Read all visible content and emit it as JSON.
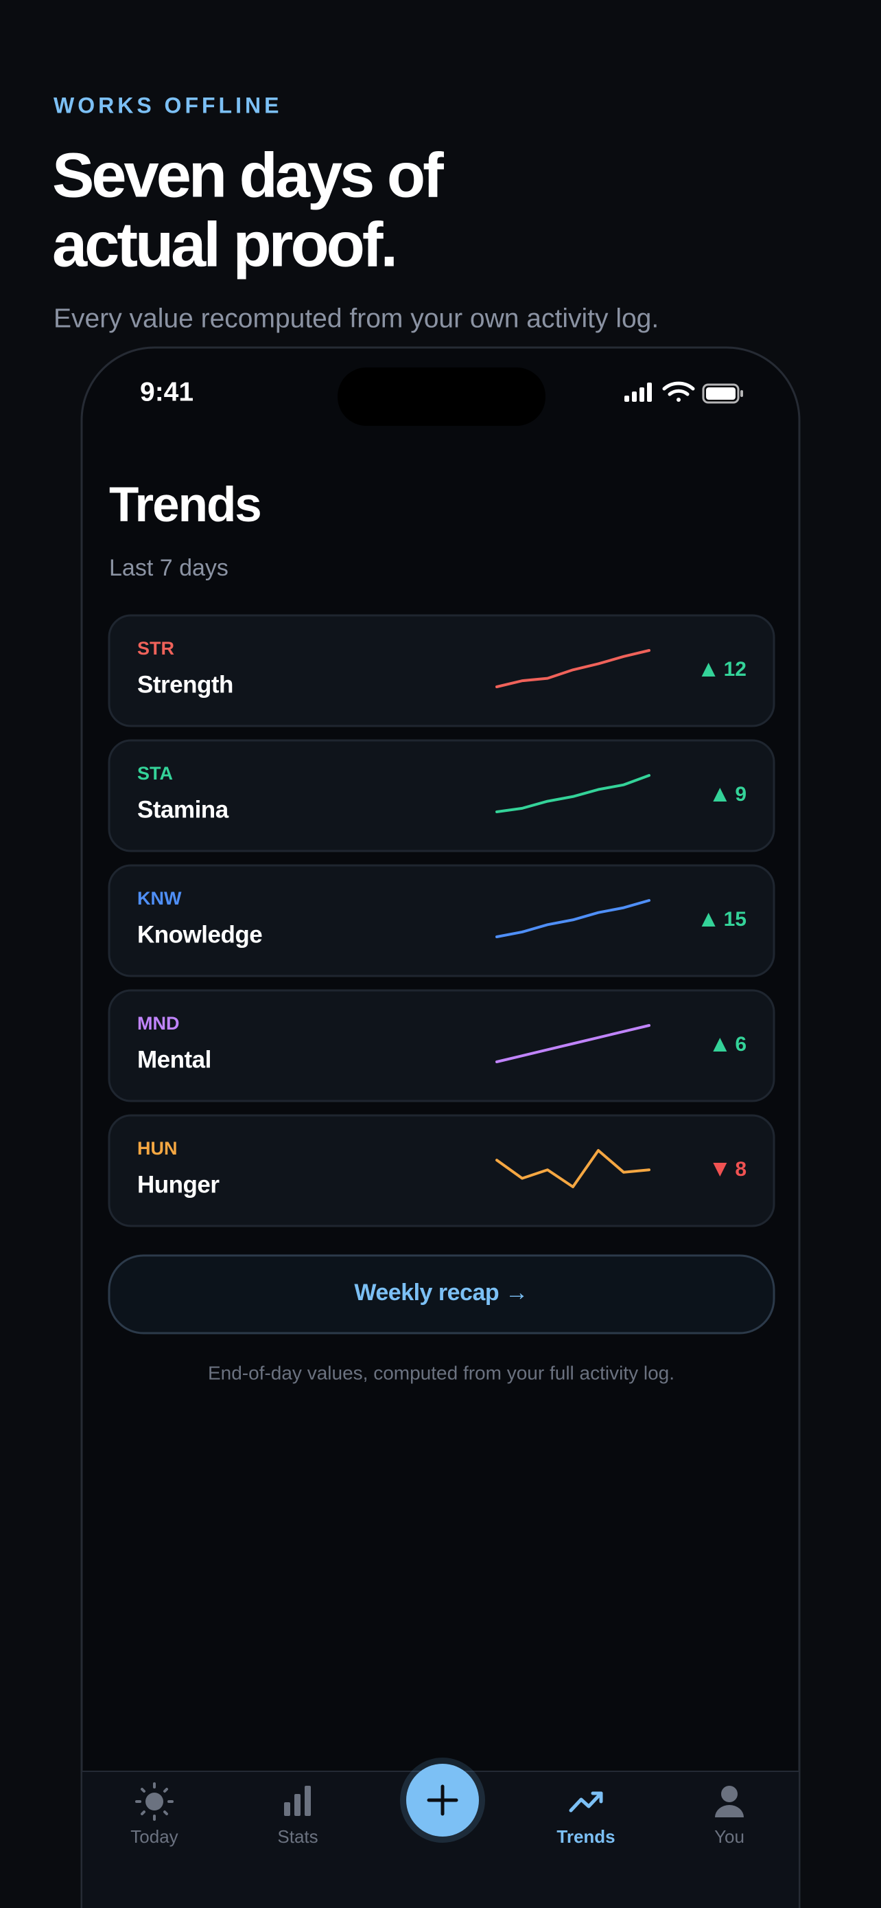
{
  "header": {
    "eyebrow": "WORKS OFFLINE",
    "title_lines": [
      "Seven days of",
      "actual proof."
    ],
    "subtitle": "Every value recomputed from your own activity log."
  },
  "status_bar": {
    "time": "9:41"
  },
  "screen": {
    "title": "Trends",
    "subtitle": "Last 7 days"
  },
  "trends": [
    {
      "code": "STR",
      "name": "Strength",
      "color": "#f0625a",
      "spark": [
        0,
        5,
        7,
        14,
        19,
        25,
        30
      ],
      "direction": "up",
      "delta": 12
    },
    {
      "code": "STA",
      "name": "Stamina",
      "color": "#34d399",
      "spark": [
        0,
        3,
        9,
        13,
        19,
        23,
        31
      ],
      "direction": "up",
      "delta": 9
    },
    {
      "code": "KNW",
      "name": "Knowledge",
      "color": "#4f8ff7",
      "spark": [
        0,
        4,
        10,
        14,
        20,
        24,
        30
      ],
      "direction": "up",
      "delta": 15
    },
    {
      "code": "MND",
      "name": "Mental",
      "color": "#c084fc",
      "spark": [
        0,
        5,
        10,
        15,
        20,
        25,
        30
      ],
      "direction": "up",
      "delta": 6
    },
    {
      "code": "HUN",
      "name": "Hunger",
      "color": "#f5a742",
      "spark": [
        22,
        7,
        14,
        0,
        30,
        12,
        14
      ],
      "direction": "down",
      "delta": 8
    }
  ],
  "button": "Weekly recap →",
  "footnote": "End-of-day values, computed from your full activity log.",
  "tabs": [
    {
      "label": "Today",
      "active": false
    },
    {
      "label": "Stats",
      "active": false
    },
    {
      "label": "Trends",
      "active": true
    },
    {
      "label": "You",
      "active": false
    }
  ]
}
